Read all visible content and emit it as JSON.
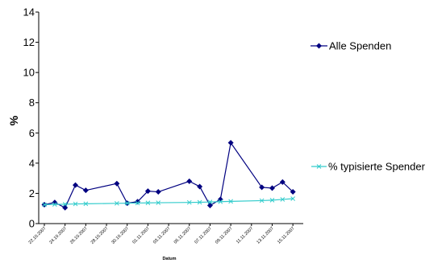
{
  "chart_data": {
    "type": "line",
    "xlabel": "Datum",
    "ylabel": "%",
    "ylim": [
      0,
      14
    ],
    "yticks": [
      0,
      2,
      4,
      6,
      8,
      10,
      12,
      14
    ],
    "xtick_labels": [
      "22.10.2007",
      "24.10.2007",
      "26.10.2007",
      "28.10.2007",
      "30.10.2007",
      "01.11.2007",
      "03.11.2007",
      "05.11.2007",
      "07.11.2007",
      "09.11.2007",
      "11.11.2007",
      "13.11.2007",
      "15.11.2007"
    ],
    "grid": false,
    "legend_position": "right",
    "series": [
      {
        "name": "Alle Spenden",
        "color": "#000080",
        "marker": "diamond",
        "x": [
          "22.10.2007",
          "23.10.2007",
          "24.10.2007",
          "25.10.2007",
          "26.10.2007",
          "29.10.2007",
          "30.10.2007",
          "31.10.2007",
          "01.11.2007",
          "02.11.2007",
          "05.11.2007",
          "06.11.2007",
          "07.11.2007",
          "08.11.2007",
          "09.11.2007",
          "12.11.2007",
          "13.11.2007",
          "14.11.2007",
          "15.11.2007"
        ],
        "values": [
          1.25,
          1.4,
          1.05,
          2.55,
          2.2,
          2.65,
          1.35,
          1.45,
          2.15,
          2.1,
          2.8,
          2.45,
          1.2,
          1.6,
          5.35,
          2.4,
          2.35,
          2.75,
          2.1
        ]
      },
      {
        "name": "% typisierte Spender",
        "color": "#33CCCC",
        "marker": "x",
        "x": [
          "22.10.2007",
          "23.10.2007",
          "24.10.2007",
          "25.10.2007",
          "26.10.2007",
          "29.10.2007",
          "30.10.2007",
          "31.10.2007",
          "01.11.2007",
          "02.11.2007",
          "05.11.2007",
          "06.11.2007",
          "07.11.2007",
          "08.11.2007",
          "09.11.2007",
          "12.11.2007",
          "13.11.2007",
          "14.11.2007",
          "15.11.2007"
        ],
        "values": [
          1.25,
          1.27,
          1.28,
          1.3,
          1.31,
          1.34,
          1.35,
          1.36,
          1.37,
          1.38,
          1.4,
          1.41,
          1.43,
          1.45,
          1.47,
          1.52,
          1.55,
          1.6,
          1.65
        ]
      }
    ]
  }
}
